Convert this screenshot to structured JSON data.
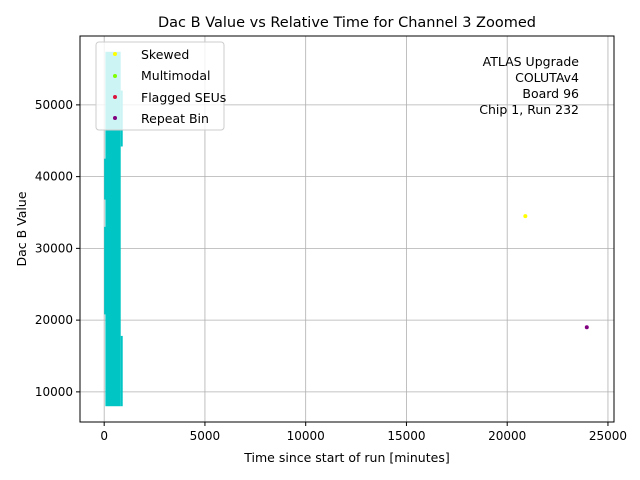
{
  "chart_data": {
    "type": "scatter",
    "title": "Dac B Value vs Relative Time for Channel 3 Zoomed",
    "xlabel": "Time since start of run [minutes]",
    "ylabel": "Dac B Value",
    "xlim": [
      -1200,
      25300
    ],
    "ylim": [
      5800,
      59600
    ],
    "xticks": [
      0,
      5000,
      10000,
      15000,
      20000,
      25000
    ],
    "yticks": [
      10000,
      20000,
      30000,
      40000,
      50000
    ],
    "grid": true,
    "legend_position": "top-left",
    "annotation": [
      "ATLAS Upgrade",
      "COLUTAv4",
      "Board 96",
      "Chip 1, Run 232"
    ],
    "main_band": {
      "color": "#00c5c5",
      "columns": [
        {
          "x0": 0,
          "x1": 60,
          "ymin": 36800,
          "ymax": 42500
        },
        {
          "x0": 0,
          "x1": 60,
          "ymin": 20800,
          "ymax": 33000
        },
        {
          "x0": 60,
          "x1": 820,
          "ymin": 8000,
          "ymax": 57400
        },
        {
          "x0": 820,
          "x1": 920,
          "ymin": 44200,
          "ymax": 52000
        },
        {
          "x0": 820,
          "x1": 920,
          "ymin": 8000,
          "ymax": 17800
        }
      ]
    },
    "series": [
      {
        "name": "Skewed",
        "color": "#ffff00",
        "points": [
          [
            20900,
            34500
          ]
        ]
      },
      {
        "name": "Multimodal",
        "color": "#7fff00",
        "points": []
      },
      {
        "name": "Flagged SEUs",
        "color": "#dc143c",
        "points": []
      },
      {
        "name": "Repeat Bin",
        "color": "#800080",
        "points": [
          [
            23950,
            19000
          ]
        ]
      }
    ]
  }
}
